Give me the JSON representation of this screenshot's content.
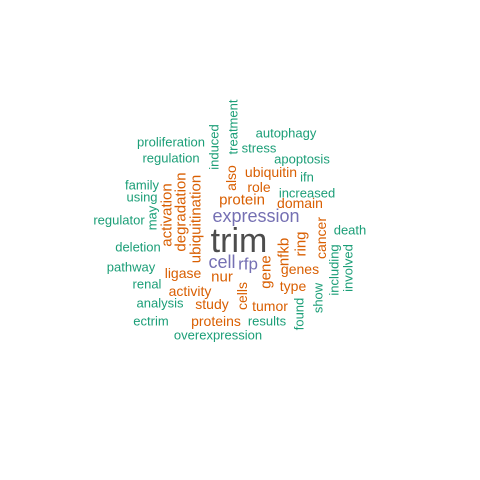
{
  "colors": {
    "teal": "#1b9e77",
    "orange": "#d95f02",
    "purple": "#7570b3",
    "dark": "#4d4d4d"
  },
  "words": [
    {
      "text": "trim",
      "color": "dark"
    },
    {
      "text": "expression",
      "color": "purple"
    },
    {
      "text": "cell",
      "color": "purple"
    },
    {
      "text": "rfp",
      "color": "purple"
    },
    {
      "text": "protein",
      "color": "orange"
    },
    {
      "text": "ubiquitin",
      "color": "orange"
    },
    {
      "text": "role",
      "color": "orange"
    },
    {
      "text": "domain",
      "color": "orange"
    },
    {
      "text": "activation",
      "color": "orange"
    },
    {
      "text": "degradation",
      "color": "orange"
    },
    {
      "text": "ubiquitination",
      "color": "orange"
    },
    {
      "text": "also",
      "color": "orange"
    },
    {
      "text": "nfkb",
      "color": "orange"
    },
    {
      "text": "ring",
      "color": "orange"
    },
    {
      "text": "cancer",
      "color": "orange"
    },
    {
      "text": "genes",
      "color": "orange"
    },
    {
      "text": "gene",
      "color": "orange"
    },
    {
      "text": "ligase",
      "color": "orange"
    },
    {
      "text": "nur",
      "color": "orange"
    },
    {
      "text": "activity",
      "color": "orange"
    },
    {
      "text": "cells",
      "color": "orange"
    },
    {
      "text": "type",
      "color": "orange"
    },
    {
      "text": "study",
      "color": "orange"
    },
    {
      "text": "tumor",
      "color": "orange"
    },
    {
      "text": "proteins",
      "color": "orange"
    },
    {
      "text": "treatment",
      "color": "teal"
    },
    {
      "text": "autophagy",
      "color": "teal"
    },
    {
      "text": "proliferation",
      "color": "teal"
    },
    {
      "text": "induced",
      "color": "teal"
    },
    {
      "text": "stress",
      "color": "teal"
    },
    {
      "text": "regulation",
      "color": "teal"
    },
    {
      "text": "apoptosis",
      "color": "teal"
    },
    {
      "text": "ifn",
      "color": "teal"
    },
    {
      "text": "family",
      "color": "teal"
    },
    {
      "text": "increased",
      "color": "teal"
    },
    {
      "text": "using",
      "color": "teal"
    },
    {
      "text": "regulator",
      "color": "teal"
    },
    {
      "text": "may",
      "color": "teal"
    },
    {
      "text": "death",
      "color": "teal"
    },
    {
      "text": "deletion",
      "color": "teal"
    },
    {
      "text": "pathway",
      "color": "teal"
    },
    {
      "text": "including",
      "color": "teal"
    },
    {
      "text": "involved",
      "color": "teal"
    },
    {
      "text": "renal",
      "color": "teal"
    },
    {
      "text": "analysis",
      "color": "teal"
    },
    {
      "text": "show",
      "color": "teal"
    },
    {
      "text": "found",
      "color": "teal"
    },
    {
      "text": "ectrim",
      "color": "teal"
    },
    {
      "text": "results",
      "color": "teal"
    },
    {
      "text": "overexpression",
      "color": "teal"
    }
  ]
}
